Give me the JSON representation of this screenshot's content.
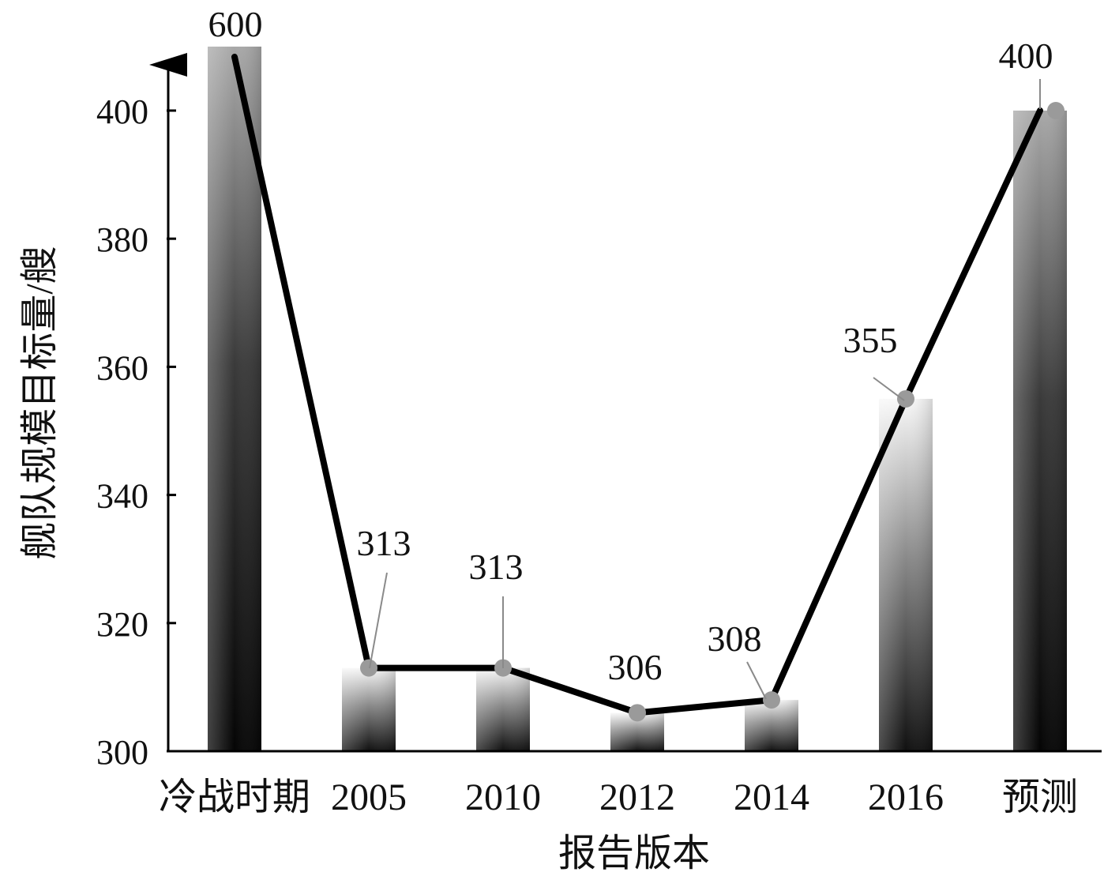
{
  "chart_data": {
    "type": "bar",
    "overlay": "line",
    "categories": [
      "冷战时期",
      "2005",
      "2010",
      "2012",
      "2014",
      "2016",
      "预测"
    ],
    "values": [
      600,
      313,
      313,
      306,
      308,
      355,
      400
    ],
    "data_labels": [
      "600",
      "313",
      "313",
      "306",
      "308",
      "355",
      "400"
    ],
    "y_ticks": [
      "300",
      "320",
      "340",
      "360",
      "380",
      "400"
    ],
    "ylim": [
      300,
      410
    ],
    "xlabel": "报告版本",
    "ylabel": "舰队规模目标量/艘",
    "grid": false,
    "legend": false,
    "colors": {
      "line": "#000000",
      "marker": "#9a9a9a",
      "bar_dark": "#0a0a0a",
      "bar_light": "#f6f6f6"
    }
  }
}
